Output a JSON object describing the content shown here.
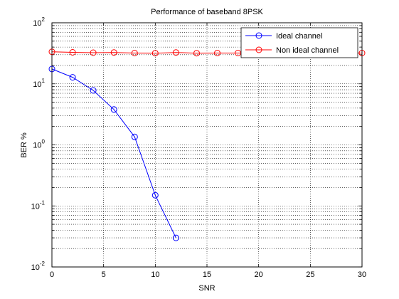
{
  "chart_data": {
    "type": "line",
    "title": "Performance of baseband 8PSK",
    "xlabel": "SNR",
    "ylabel": "BER %",
    "xlim": [
      0,
      30
    ],
    "ylim": [
      0.01,
      100
    ],
    "yscale": "log",
    "grid": true,
    "xticks": [
      0,
      5,
      10,
      15,
      20,
      25,
      30
    ],
    "x_tick_labels": [
      "0",
      "5",
      "10",
      "15",
      "20",
      "25",
      "30"
    ],
    "yticks": [
      0.01,
      0.1,
      1,
      10,
      100
    ],
    "y_tick_labels": [
      {
        "base": "10",
        "exp": "-2"
      },
      {
        "base": "10",
        "exp": "-1"
      },
      {
        "base": "10",
        "exp": "0"
      },
      {
        "base": "10",
        "exp": "1"
      },
      {
        "base": "10",
        "exp": "2"
      }
    ],
    "legend": {
      "position": "top-right",
      "entries": [
        "Ideal channel",
        "Non ideal channel"
      ]
    },
    "series": [
      {
        "name": "Ideal channel",
        "color": "#0000ff",
        "marker": "circle",
        "x": [
          0,
          2,
          4,
          6,
          8,
          10,
          12
        ],
        "y": [
          17.5,
          12.8,
          7.8,
          3.8,
          1.35,
          0.15,
          0.03
        ]
      },
      {
        "name": "Non ideal channel",
        "color": "#ff0000",
        "marker": "circle",
        "x": [
          0,
          2,
          4,
          6,
          8,
          10,
          12,
          14,
          16,
          18,
          20,
          22,
          24,
          26,
          28,
          30
        ],
        "y": [
          33.5,
          32.8,
          32.4,
          32.6,
          31.9,
          31.8,
          32.6,
          31.8,
          31.9,
          31.9,
          31.9,
          31.9,
          31.9,
          31.9,
          31.9,
          31.9
        ]
      }
    ]
  }
}
